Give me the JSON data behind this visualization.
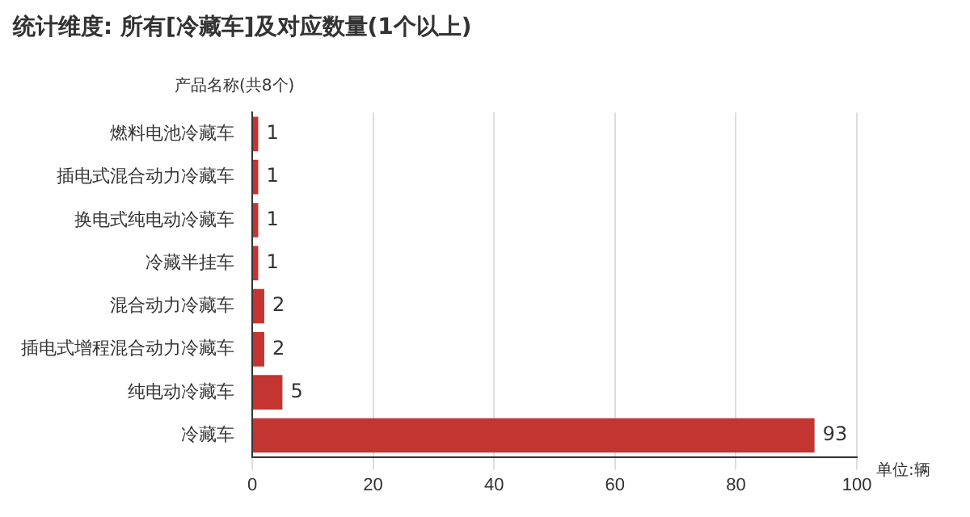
{
  "chart_data": {
    "type": "bar",
    "orientation": "horizontal",
    "title": "统计维度: 所有[冷藏车]及对应数量(1个以上)",
    "ylabel": "产品名称(共8个)",
    "xlabel": "单位:辆",
    "categories": [
      "燃料电池冷藏车",
      "插电式混合动力冷藏车",
      "换电式纯电动冷藏车",
      "冷藏半挂车",
      "混合动力冷藏车",
      "插电式增程混合动力冷藏车",
      "纯电动冷藏车",
      "冷藏车"
    ],
    "values": [
      1,
      1,
      1,
      1,
      2,
      2,
      5,
      93
    ],
    "color": "#c23531",
    "xlim": [
      0,
      100
    ],
    "xticks": [
      0,
      20,
      40,
      60,
      80,
      100
    ],
    "grid": "x",
    "data_labels": true,
    "legend": false
  }
}
